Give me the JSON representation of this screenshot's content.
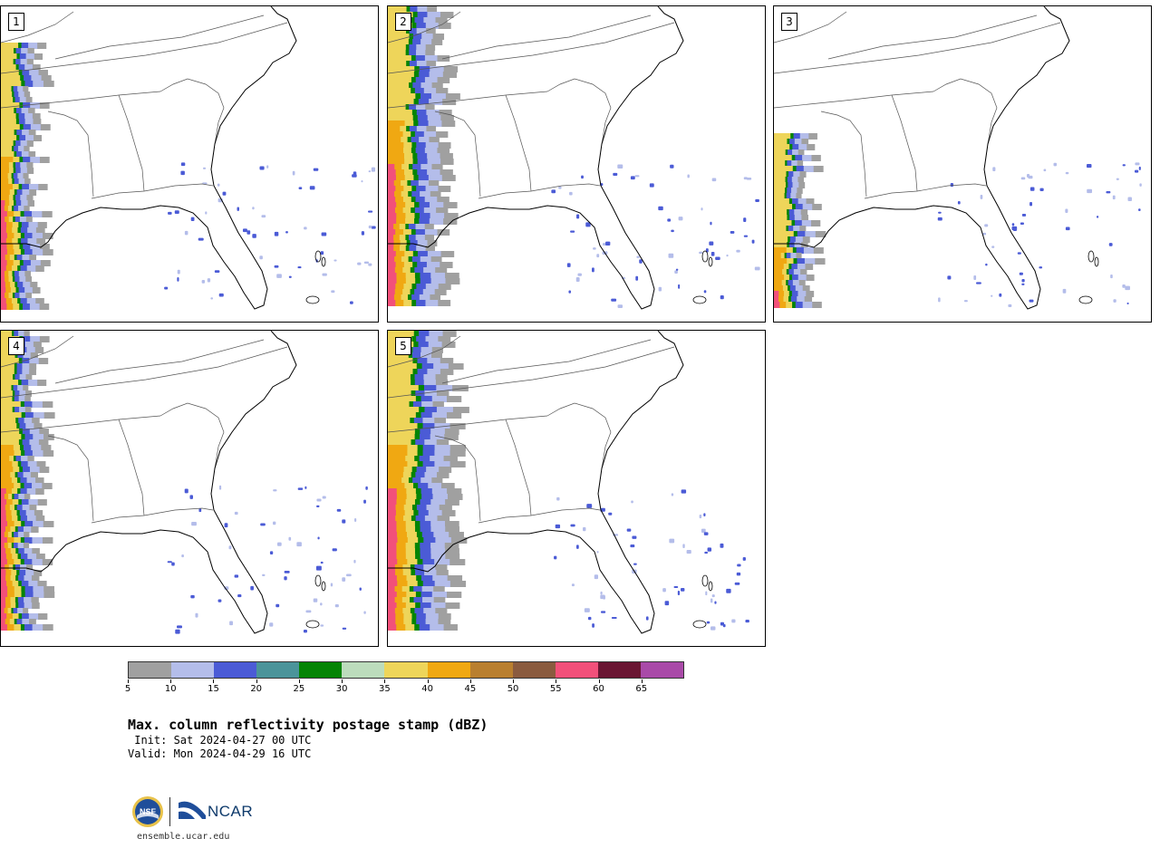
{
  "panels": [
    {
      "label": "1"
    },
    {
      "label": "2"
    },
    {
      "label": "3"
    },
    {
      "label": "4"
    },
    {
      "label": "5"
    }
  ],
  "colorbar": {
    "colors": [
      "#a0a0a0",
      "#b4bdea",
      "#4b5bd6",
      "#4b949a",
      "#058405",
      "#bcdcbc",
      "#eed55a",
      "#f0a812",
      "#b97f2f",
      "#8a5b3f",
      "#f2507a",
      "#6a1633",
      "#a94aa8"
    ],
    "ticks": [
      "5",
      "10",
      "15",
      "20",
      "25",
      "30",
      "35",
      "40",
      "45",
      "50",
      "55",
      "60",
      "65"
    ]
  },
  "title": "Max. column reflectivity postage stamp (dBZ)",
  "init": " Init: Sat 2024-04-27 00 UTC",
  "valid": "Valid: Mon 2024-04-29 16 UTC",
  "logo": {
    "nsf": "NSF",
    "ncar": "NCAR",
    "url": "ensemble.ucar.edu"
  }
}
